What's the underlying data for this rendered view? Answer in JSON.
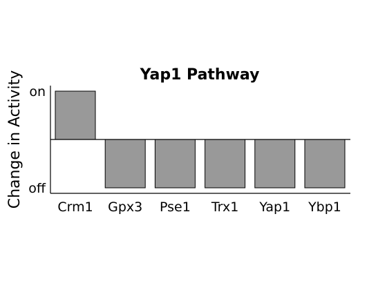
{
  "chart_data": {
    "type": "bar",
    "title": "Yap1 Pathway",
    "xlabel": "",
    "ylabel": "Change in Activity",
    "categories": [
      "Crm1",
      "Gpx3",
      "Pse1",
      "Trx1",
      "Yap1",
      "Ybp1"
    ],
    "values": [
      1,
      -1,
      -1,
      -1,
      -1,
      -1
    ],
    "ylim": [
      -1.1,
      1.1
    ],
    "yticks": [
      {
        "value": 1,
        "label": "on"
      },
      {
        "value": -1,
        "label": "off"
      }
    ],
    "baseline": 0,
    "grid": false,
    "legend": "none",
    "bar_color": "#999999"
  }
}
